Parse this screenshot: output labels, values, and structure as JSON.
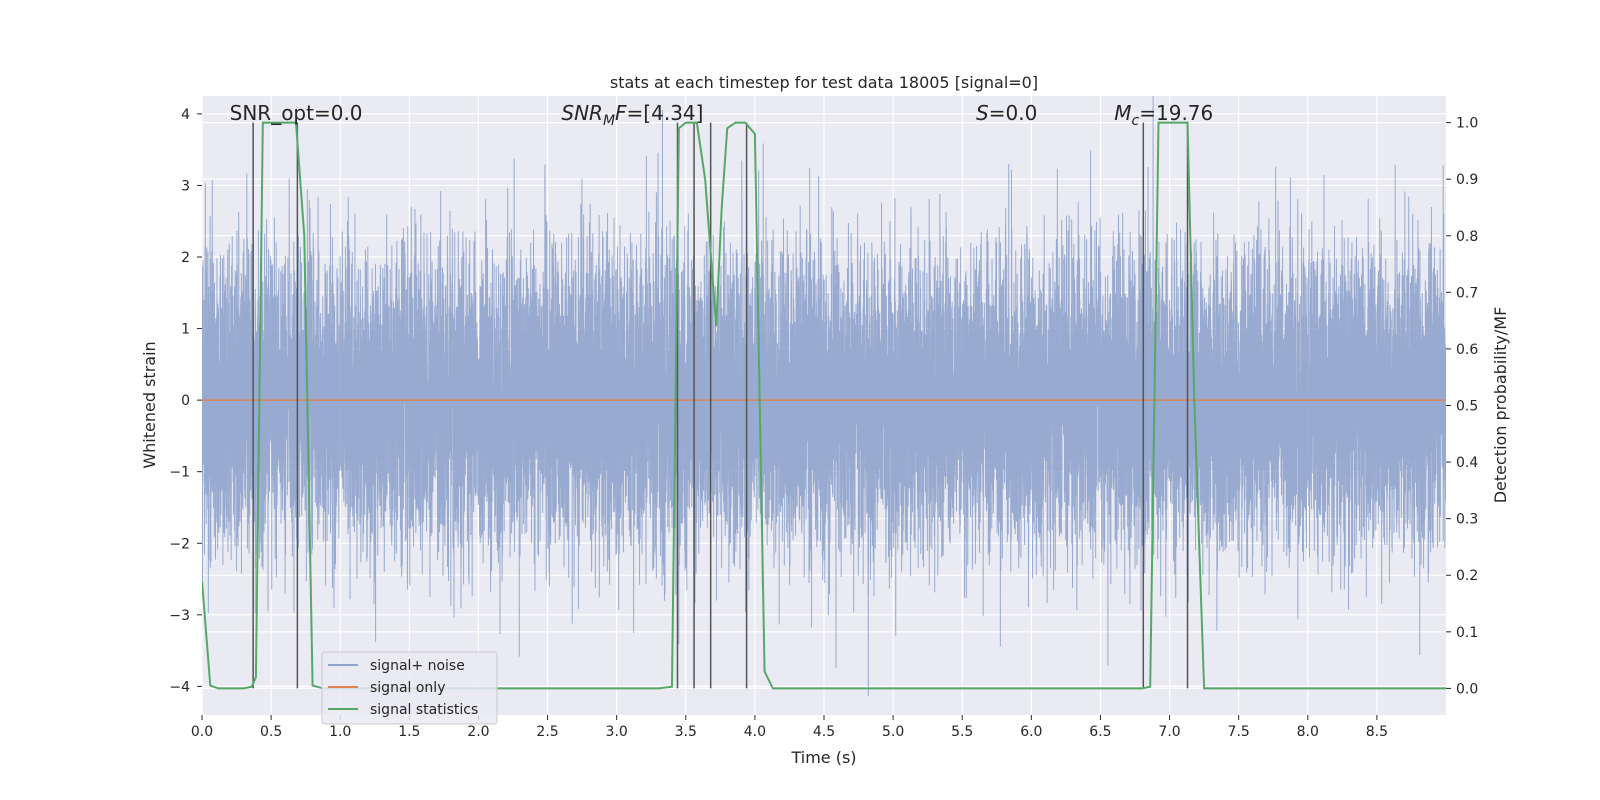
{
  "chart_data": {
    "type": "line",
    "title": "stats at each timestep for test data 18005 [signal=0]",
    "xlabel": "Time (s)",
    "ylabel": "Whitened strain",
    "ylabel_right": "Detection probability/MF",
    "xlim": [
      0.0,
      9.0
    ],
    "ylim": [
      -4.4,
      4.25
    ],
    "ylim_right": [
      -0.047,
      1.047
    ],
    "x_ticks": [
      0.0,
      0.5,
      1.0,
      1.5,
      2.0,
      2.5,
      3.0,
      3.5,
      4.0,
      4.5,
      5.0,
      5.5,
      6.0,
      6.5,
      7.0,
      7.5,
      8.0,
      8.5
    ],
    "x_tick_labels": [
      "0.0",
      "0.5",
      "1.0",
      "1.5",
      "2.0",
      "2.5",
      "3.0",
      "3.5",
      "4.0",
      "4.5",
      "5.0",
      "5.5",
      "6.0",
      "6.5",
      "7.0",
      "7.5",
      "8.0",
      "8.5"
    ],
    "y_ticks": [
      -4,
      -3,
      -2,
      -1,
      0,
      1,
      2,
      3,
      4
    ],
    "y_tick_labels": [
      "−4",
      "−3",
      "−2",
      "−1",
      "0",
      "1",
      "2",
      "3",
      "4"
    ],
    "y_right_ticks": [
      0.0,
      0.1,
      0.2,
      0.3,
      0.4,
      0.5,
      0.6,
      0.7,
      0.8,
      0.9,
      1.0
    ],
    "y_right_tick_labels": [
      "0.0",
      "0.1",
      "0.2",
      "0.3",
      "0.4",
      "0.5",
      "0.6",
      "0.7",
      "0.8",
      "0.9",
      "1.0"
    ],
    "grid": true,
    "legend_position": "lower-left",
    "annotations": [
      {
        "label": "SNR_opt=0.0",
        "x": 0.2
      },
      {
        "label": "SNR",
        "sub": "M",
        "suffix": "F=[4.34]",
        "italic": true,
        "x": 2.6
      },
      {
        "label": "S",
        "suffix": "=0.0",
        "italic": true,
        "x": 5.6
      },
      {
        "label": "M",
        "sub": "c",
        "suffix": "=19.76",
        "italic": true,
        "x": 6.6
      }
    ],
    "series": [
      {
        "name": "signal+ noise",
        "color": "#8fa3cc",
        "kind": "noise",
        "sample_rate": 2048,
        "std": 1.0
      },
      {
        "name": "signal only",
        "color": "#dd8452",
        "kind": "constant",
        "value": 0.0
      },
      {
        "name": "signal statistics",
        "color": "#55a868",
        "axis": "right",
        "x": [
          0.0,
          0.06,
          0.12,
          0.2,
          0.3,
          0.36,
          0.39,
          0.44,
          0.5,
          0.6,
          0.68,
          0.74,
          0.8,
          0.88,
          1.0,
          1.5,
          2.0,
          2.5,
          3.0,
          3.3,
          3.4,
          3.45,
          3.5,
          3.58,
          3.64,
          3.72,
          3.76,
          3.8,
          3.86,
          3.93,
          4.0,
          4.07,
          4.13,
          4.5,
          5.0,
          5.5,
          6.0,
          6.5,
          6.8,
          6.86,
          6.92,
          7.0,
          7.06,
          7.13,
          7.18,
          7.25,
          7.5,
          8.0,
          8.5,
          9.0
        ],
        "y": [
          0.19,
          0.005,
          0.0,
          0.0,
          0.0,
          0.003,
          0.02,
          1.0,
          1.0,
          1.0,
          1.0,
          0.8,
          0.005,
          0.0,
          0.0,
          0.0,
          0.0,
          0.0,
          0.0,
          0.0,
          0.003,
          0.99,
          1.0,
          1.0,
          0.9,
          0.64,
          0.85,
          0.99,
          1.0,
          1.0,
          0.98,
          0.03,
          0.0,
          0.0,
          0.0,
          0.0,
          0.0,
          0.0,
          0.0,
          0.003,
          1.0,
          1.0,
          1.0,
          1.0,
          0.5,
          0.0,
          0.0,
          0.0,
          0.0,
          0.0
        ]
      }
    ],
    "marker_lines": {
      "color": "#555555",
      "x": [
        0.37,
        0.69,
        3.44,
        3.56,
        3.68,
        3.94,
        6.81,
        7.13
      ],
      "y_range_right": [
        0.0,
        1.0
      ]
    }
  }
}
